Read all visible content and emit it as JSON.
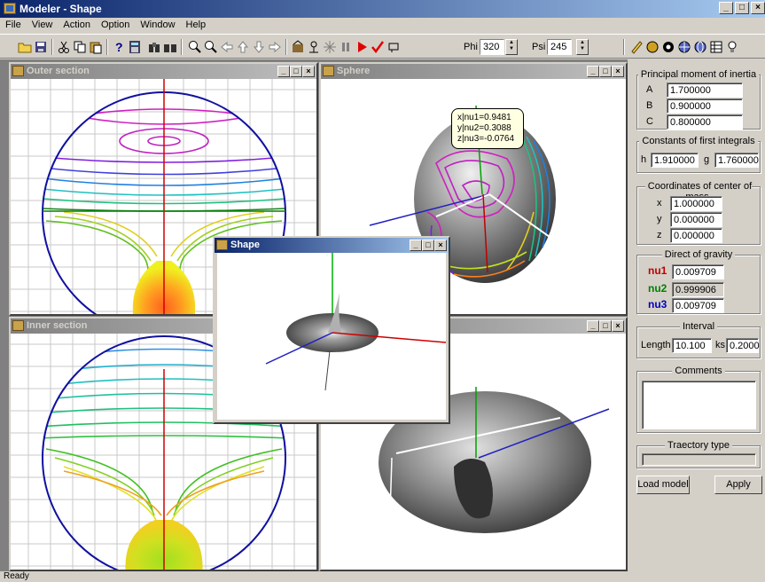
{
  "app": {
    "title": "Modeler - Shape"
  },
  "menu": {
    "items": [
      "File",
      "View",
      "Action",
      "Option",
      "Window",
      "Help"
    ]
  },
  "toolbar": {
    "icons": [
      "open-folder-icon",
      "save-icon",
      "cut-icon",
      "copy-icon",
      "paste-icon",
      "help-icon",
      "calculator-icon",
      "binoculars-icon",
      "binoculars-all-icon",
      "zoom-in-icon",
      "zoom-out-icon",
      "arrow-left-icon",
      "arrow-up-icon",
      "arrow-down-icon",
      "arrow-right-icon",
      "render-icon",
      "tree-icon",
      "asterisk-icon",
      "pause-icon",
      "play-icon",
      "check-icon",
      "frame-icon"
    ],
    "phi_label": "Phi",
    "phi_value": "320",
    "psi_label": "Psi",
    "psi_value": "245"
  },
  "windows": {
    "outer": {
      "title": "Outer section"
    },
    "sphere": {
      "title": "Sphere",
      "tooltip": [
        "x|nu1=0.9481",
        "y|nu2=0.3088",
        "z|nu3=-0.0764"
      ]
    },
    "inner": {
      "title": "Inner section"
    },
    "shape": {
      "title": "Shape"
    }
  },
  "panel": {
    "inertia": {
      "title": "Principal moment of inertia",
      "a_label": "A",
      "a": "1.700000",
      "b_label": "B",
      "b": "0.900000",
      "c_label": "C",
      "c": "0.800000"
    },
    "constants": {
      "title": "Constants of first integrals",
      "h_label": "h",
      "h": "1.910000",
      "g_label": "g",
      "g": "1.760000"
    },
    "mass": {
      "title": "Coordinates of center of mass",
      "x_label": "x",
      "x": "1.000000",
      "y_label": "y",
      "y": "0.000000",
      "z_label": "z",
      "z": "0.000000"
    },
    "gravity": {
      "title": "Direct of gravity",
      "nu1_label": "nu1",
      "nu1": "0.009709",
      "nu2_label": "nu2",
      "nu2": "0.999906",
      "nu3_label": "nu3",
      "nu3": "0.009709",
      "colors": {
        "nu1": "#c00000",
        "nu2": "#008000",
        "nu3": "#0000c0"
      }
    },
    "interval": {
      "title": "Interval",
      "length_label": "Length",
      "length": "10.100",
      "ks_label": "ks",
      "ks": "0.2000"
    },
    "comments": {
      "title": "Comments",
      "text": ""
    },
    "trajectory": {
      "title": "Traectory type",
      "value": ""
    },
    "load_button": "Load model",
    "apply_button": "Apply"
  },
  "status": {
    "text": "Ready"
  },
  "colors": {
    "active_title": "#0a246a",
    "inactive_title": "#808080"
  }
}
